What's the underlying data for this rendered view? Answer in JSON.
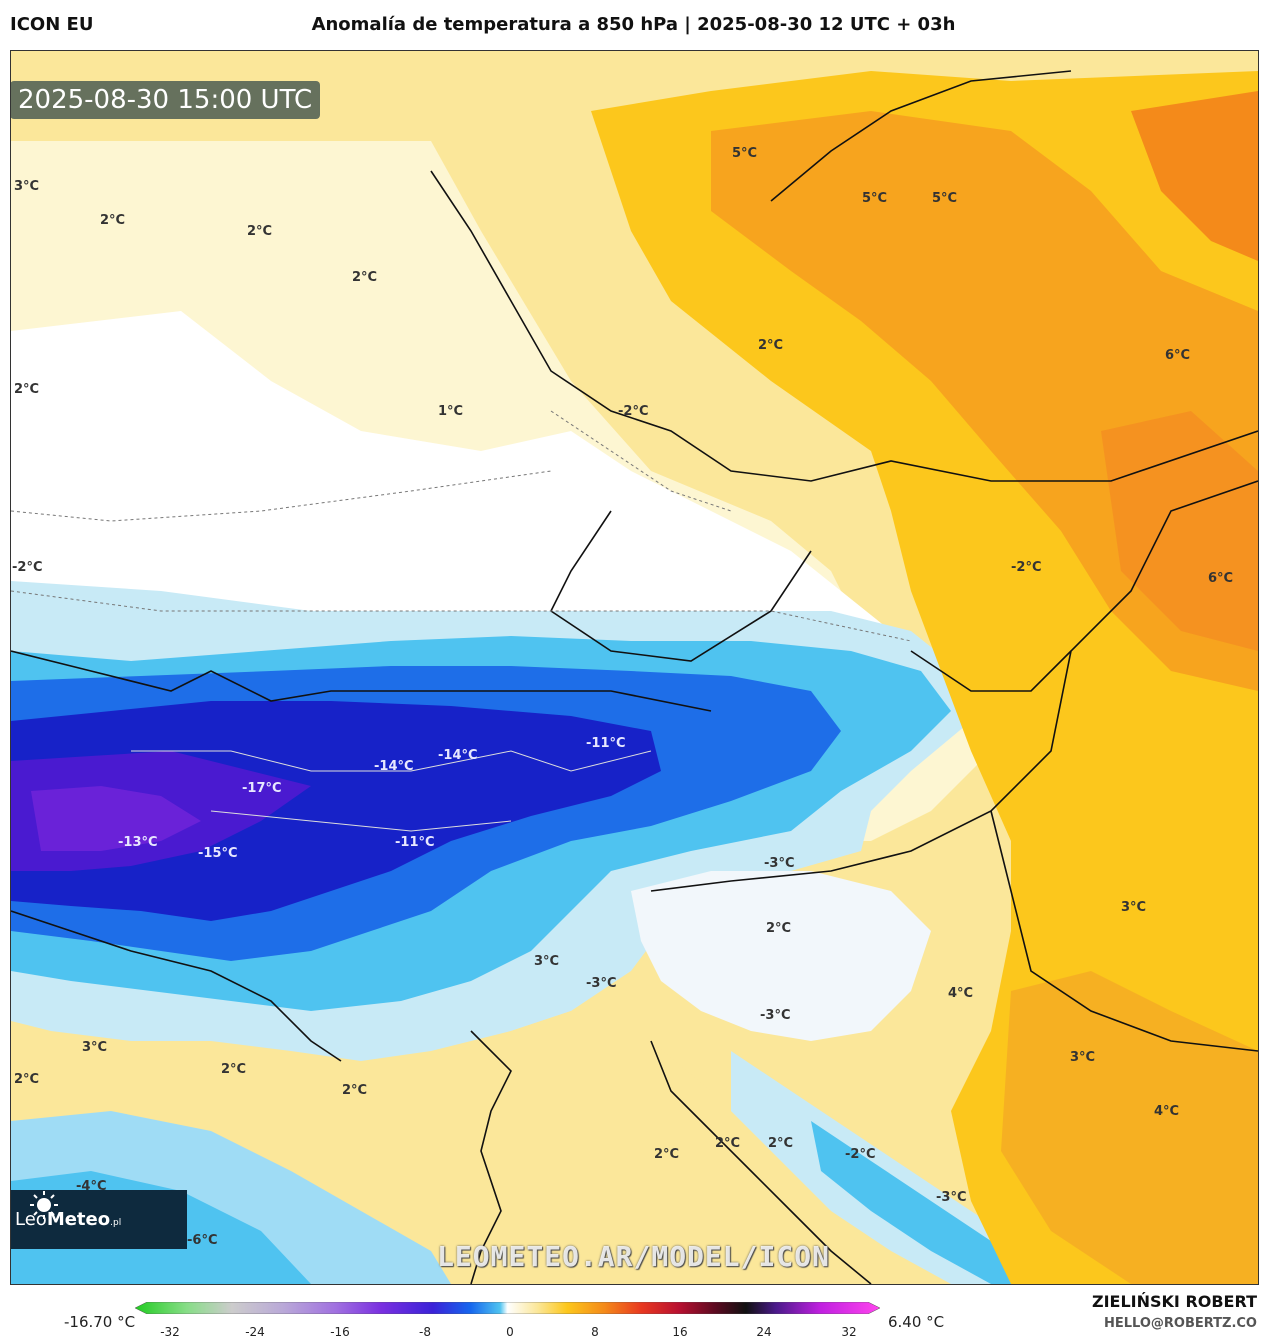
{
  "header": {
    "model": "ICON EU",
    "title": "Anomalía de temperatura a 850 hPa | 2025-08-30 12 UTC + 03h"
  },
  "map": {
    "valid_time": "2025-08-30 15:00 UTC",
    "watermark": "LEOMETEO.AR/MODEL/ICON",
    "logo": {
      "brand_light": "Leo",
      "brand_bold": "Meteo",
      "suffix": ".pl"
    },
    "labels": [
      {
        "text": "3°C"
      },
      {
        "text": "2°C"
      },
      {
        "text": "2°C"
      },
      {
        "text": "2°C"
      },
      {
        "text": "2°C"
      },
      {
        "text": "1°C"
      },
      {
        "text": "-2°C"
      },
      {
        "text": "5°C"
      },
      {
        "text": "5°C"
      },
      {
        "text": "5°C"
      },
      {
        "text": "2°C"
      },
      {
        "text": "6°C"
      },
      {
        "text": "-2°C"
      },
      {
        "text": "-2°C"
      },
      {
        "text": "6°C"
      },
      {
        "text": "-11°C"
      },
      {
        "text": "-14°C"
      },
      {
        "text": "-14°C"
      },
      {
        "text": "-17°C"
      },
      {
        "text": "-13°C"
      },
      {
        "text": "-15°C"
      },
      {
        "text": "-11°C"
      },
      {
        "text": "-3°C"
      },
      {
        "text": "2°C"
      },
      {
        "text": "3°C"
      },
      {
        "text": "3°C"
      },
      {
        "text": "-3°C"
      },
      {
        "text": "-3°C"
      },
      {
        "text": "4°C"
      },
      {
        "text": "3°C"
      },
      {
        "text": "2°C"
      },
      {
        "text": "2°C"
      },
      {
        "text": "2°C"
      },
      {
        "text": "3°C"
      },
      {
        "text": "4°C"
      },
      {
        "text": "2°C"
      },
      {
        "text": "2°C"
      },
      {
        "text": "2°C"
      },
      {
        "text": "-2°C"
      },
      {
        "text": "-3°C"
      },
      {
        "text": "-4°C"
      },
      {
        "text": "-6°C"
      }
    ]
  },
  "colorbar": {
    "min_label": "-16.70 °C",
    "max_label": "6.40 °C",
    "ticks": [
      "-32",
      "-24",
      "-16",
      "-8",
      "0",
      "8",
      "16",
      "24",
      "32"
    ]
  },
  "footer": {
    "author": "ZIELIŃSKI ROBERT",
    "email": "HELLO@ROBERTZ.CO"
  }
}
